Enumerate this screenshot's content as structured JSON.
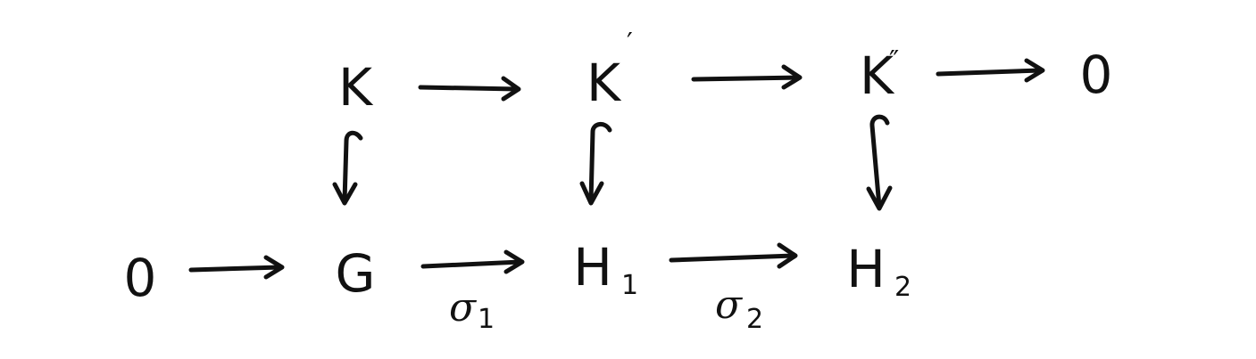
{
  "diagram": {
    "type": "commutative-diagram",
    "top_row": [
      {
        "id": "K",
        "base": "K",
        "sup": ""
      },
      {
        "id": "Kp",
        "base": "K",
        "sup": "′"
      },
      {
        "id": "Kpp",
        "base": "K",
        "sup": "″"
      },
      {
        "id": "zero_top",
        "base": "0",
        "sup": ""
      }
    ],
    "bottom_row": [
      {
        "id": "zero_bottom",
        "base": "0",
        "sub": ""
      },
      {
        "id": "G",
        "base": "G",
        "sub": ""
      },
      {
        "id": "H1",
        "base": "H",
        "sub": "1"
      },
      {
        "id": "H2",
        "base": "H",
        "sub": "2"
      }
    ],
    "arrow_labels": {
      "sigma1_base": "σ",
      "sigma1_sub": "1",
      "sigma2_base": "σ",
      "sigma2_sub": "2"
    },
    "arrows": [
      {
        "from": "K",
        "to": "Kp",
        "kind": "map"
      },
      {
        "from": "Kp",
        "to": "Kpp",
        "kind": "map"
      },
      {
        "from": "Kpp",
        "to": "zero_top",
        "kind": "map"
      },
      {
        "from": "zero_bottom",
        "to": "G",
        "kind": "map"
      },
      {
        "from": "G",
        "to": "H1",
        "kind": "map",
        "label": "σ1"
      },
      {
        "from": "H1",
        "to": "H2",
        "kind": "map",
        "label": "σ2"
      },
      {
        "from": "K",
        "to": "G",
        "kind": "inclusion"
      },
      {
        "from": "Kp",
        "to": "H1",
        "kind": "inclusion"
      },
      {
        "from": "Kpp",
        "to": "H2",
        "kind": "inclusion"
      }
    ]
  }
}
